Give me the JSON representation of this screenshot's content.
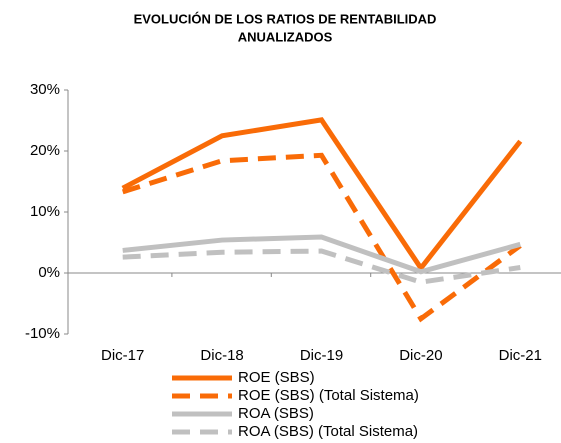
{
  "chart_data": {
    "type": "line",
    "title": [
      "EVOLUCIÓN DE LOS RATIOS DE RENTABILIDAD",
      "ANUALIZADOS"
    ],
    "categories": [
      "Dic-17",
      "Dic-18",
      "Dic-19",
      "Dic-20",
      "Dic-21"
    ],
    "series": [
      {
        "name": "ROE (SBS)",
        "color": "#f96b07",
        "dashed": false,
        "values": [
          13.9,
          22.5,
          25.1,
          0.8,
          21.6
        ]
      },
      {
        "name": "ROE (SBS) (Total Sistema)",
        "color": "#f96b07",
        "dashed": true,
        "values": [
          13.3,
          18.4,
          19.3,
          -7.5,
          4.5
        ]
      },
      {
        "name": "ROA (SBS)",
        "color": "#c0c0c0",
        "dashed": false,
        "values": [
          3.7,
          5.4,
          5.9,
          0.2,
          4.7
        ]
      },
      {
        "name": "ROA (SBS) (Total Sistema)",
        "color": "#c0c0c0",
        "dashed": true,
        "values": [
          2.6,
          3.4,
          3.6,
          -1.5,
          0.9
        ]
      }
    ],
    "ylim": [
      -10,
      30
    ],
    "yticks": [
      {
        "value": -10,
        "label": "-10%"
      },
      {
        "value": 0,
        "label": "0%"
      },
      {
        "value": 10,
        "label": "10%"
      },
      {
        "value": 20,
        "label": "20%"
      },
      {
        "value": 30,
        "label": "30%"
      }
    ],
    "legend": "bottom"
  }
}
